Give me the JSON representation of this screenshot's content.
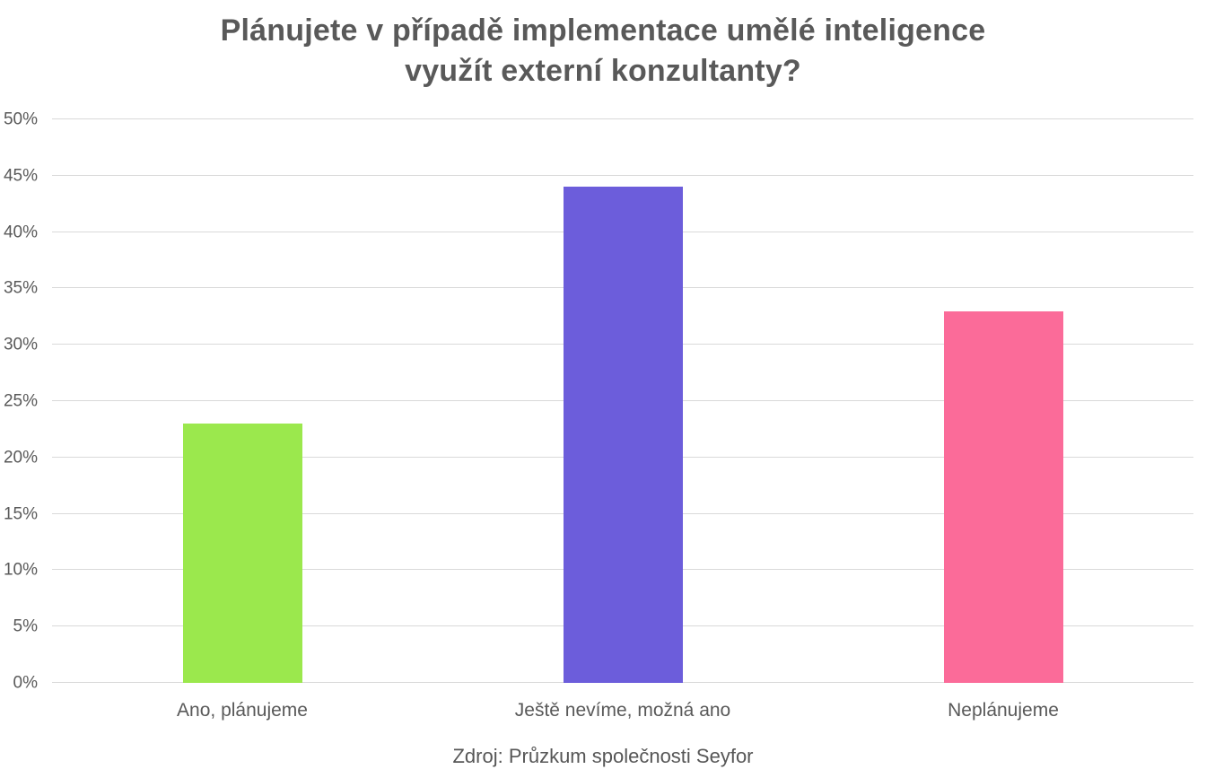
{
  "header": {
    "title_lines": [
      "Plánujete v případě implementace umělé inteligence",
      "využít externí konzultanty?"
    ]
  },
  "chart_data": {
    "type": "bar",
    "title": "Plánujete v případě implementace umělé inteligence využít externí konzultanty?",
    "categories": [
      "Ano, plánujeme",
      "Ještě nevíme, možná ano",
      "Neplánujeme"
    ],
    "values": [
      23,
      44,
      33
    ],
    "unit": "%",
    "bar_colors": [
      "#9BE84D",
      "#6C5DDB",
      "#FB6B99"
    ],
    "xlabel": "",
    "ylabel": "",
    "ylim": [
      0,
      50
    ],
    "ytick_step": 5,
    "ytick_labels": [
      "0%",
      "5%",
      "10%",
      "15%",
      "20%",
      "25%",
      "30%",
      "35%",
      "40%",
      "45%",
      "50%"
    ],
    "grid": true,
    "legend_position": "none"
  },
  "footer": {
    "source_label": "Zdroj: Průzkum společnosti Seyfor"
  },
  "colors": {
    "title_text": "#595959",
    "axis_text": "#595959",
    "gridline": "#D9D9D9",
    "background": "#FFFFFF"
  }
}
